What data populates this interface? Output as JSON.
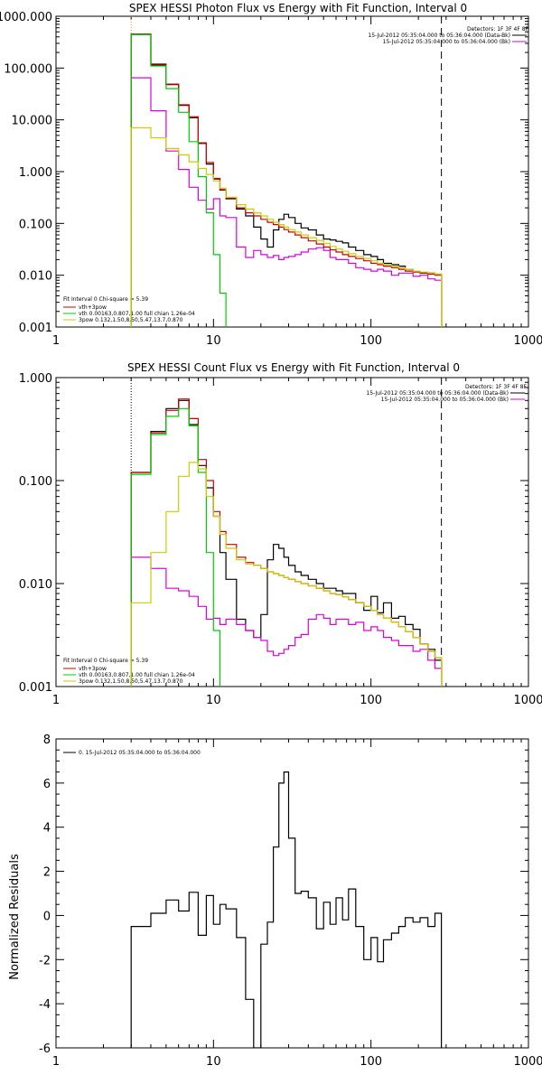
{
  "chart_data": [
    {
      "type": "line",
      "title": "SPEX HESSI Photon Flux vs Energy with Fit Function, Interval 0",
      "xlabel": "",
      "ylabel": "",
      "xscale": "log",
      "yscale": "log",
      "xlim": [
        1,
        1000
      ],
      "ylim": [
        0.001,
        1000
      ],
      "xticks": [
        "1",
        "10",
        "100",
        "1000"
      ],
      "yticks": [
        "0.001",
        "0.010",
        "0.100",
        "1.000",
        "10.000",
        "100.000",
        "1000.000"
      ],
      "vlines": [
        {
          "x": 3,
          "style": "dotted-orange"
        },
        {
          "x": 280,
          "style": "dashed"
        }
      ],
      "legend_topright": [
        "Detectors: 1F 3F 4F 8F",
        "15-Jul-2012 05:35:04.000 to 05:36:04.000 (Data-Bk)",
        "15-Jul-2012 05:35:04.000 to 05:36:04.000 (Bk)"
      ],
      "legend_bottomleft": [
        "Fit Interval 0   Chi-square = 5.39",
        "vth+3pow",
        "vth 0.00163,0.807,1.00  full chian 1.26e-04",
        "3pow 0.132,1.50,8.50,5.47,13.7,0.870"
      ],
      "series": [
        {
          "name": "15-Jul-2012 05:35:04.000 to 05:36:04.000 (Data-Bk)",
          "color": "#000000",
          "edges": [
            3,
            4,
            5,
            6,
            7,
            8,
            9,
            10,
            11,
            12,
            14,
            16,
            18,
            20,
            22,
            24,
            26,
            28,
            30,
            33,
            36,
            40,
            45,
            50,
            55,
            60,
            66,
            72,
            80,
            90,
            100,
            110,
            120,
            135,
            150,
            165,
            185,
            205,
            230,
            255,
            280
          ],
          "values": [
            450,
            115,
            48,
            19,
            11,
            3.5,
            1.4,
            0.72,
            0.44,
            0.3,
            0.19,
            0.14,
            0.085,
            0.05,
            0.035,
            0.075,
            0.12,
            0.15,
            0.13,
            0.1,
            0.082,
            0.075,
            0.06,
            0.05,
            0.048,
            0.045,
            0.042,
            0.035,
            0.03,
            0.025,
            0.023,
            0.02,
            0.017,
            0.016,
            0.015,
            0.013,
            0.012,
            0.011,
            0.011,
            0.0105
          ]
        },
        {
          "name": "15-Jul-2012 05:35:04.000 to 05:36:04.000 (Bk)",
          "color": "#dd00dd",
          "edges": [
            3,
            4,
            5,
            6,
            7,
            8,
            9,
            10,
            11,
            12,
            14,
            16,
            18,
            20,
            22,
            24,
            26,
            28,
            30,
            33,
            36,
            40,
            45,
            50,
            55,
            60,
            66,
            72,
            80,
            90,
            100,
            110,
            120,
            135,
            150,
            165,
            185,
            205,
            230,
            255,
            280
          ],
          "values": [
            65,
            15,
            2.5,
            1.1,
            0.5,
            0.28,
            0.19,
            0.3,
            0.14,
            0.13,
            0.035,
            0.022,
            0.03,
            0.025,
            0.022,
            0.024,
            0.02,
            0.022,
            0.023,
            0.025,
            0.028,
            0.032,
            0.034,
            0.03,
            0.022,
            0.02,
            0.02,
            0.017,
            0.014,
            0.013,
            0.012,
            0.013,
            0.012,
            0.01,
            0.011,
            0.011,
            0.0095,
            0.01,
            0.0085,
            0.008
          ]
        },
        {
          "name": "vth+3pow",
          "color": "#cc0000",
          "edges": [
            3,
            4,
            5,
            6,
            7,
            8,
            9,
            10,
            11,
            12,
            14,
            16,
            18,
            20,
            22,
            24,
            26,
            28,
            30,
            33,
            36,
            40,
            45,
            50,
            55,
            60,
            66,
            72,
            80,
            90,
            100,
            110,
            120,
            135,
            150,
            165,
            185,
            205,
            230,
            255,
            280
          ],
          "values": [
            450,
            120,
            49,
            19.5,
            11.5,
            3.6,
            1.5,
            0.74,
            0.45,
            0.31,
            0.2,
            0.16,
            0.14,
            0.12,
            0.105,
            0.095,
            0.085,
            0.076,
            0.068,
            0.06,
            0.053,
            0.046,
            0.04,
            0.035,
            0.031,
            0.028,
            0.025,
            0.023,
            0.021,
            0.019,
            0.017,
            0.016,
            0.015,
            0.014,
            0.013,
            0.012,
            0.0115,
            0.011,
            0.0105,
            0.01
          ]
        },
        {
          "name": "vth 0.00163,0.807,1.00  full chian 1.26e-04",
          "color": "#00cc00",
          "edges": [
            3,
            4,
            5,
            6,
            7,
            8,
            9,
            10,
            11,
            12,
            13
          ],
          "values": [
            440,
            110,
            40,
            14,
            3.8,
            0.8,
            0.16,
            0.025,
            0.0045,
            0.0004
          ]
        },
        {
          "name": "3pow 0.132,1.50,8.50,5.47,13.7,0.870",
          "color": "#cccc00",
          "edges": [
            3,
            4,
            5,
            6,
            7,
            8,
            9,
            10,
            11,
            12,
            14,
            16,
            18,
            20,
            22,
            24,
            26,
            28,
            30,
            33,
            36,
            40,
            45,
            50,
            55,
            60,
            66,
            72,
            80,
            90,
            100,
            110,
            120,
            135,
            150,
            165,
            185,
            205,
            230,
            255,
            280
          ],
          "values": [
            7,
            4.5,
            2.8,
            2.1,
            1.55,
            1.15,
            0.88,
            0.66,
            0.48,
            0.32,
            0.23,
            0.19,
            0.16,
            0.14,
            0.12,
            0.105,
            0.095,
            0.085,
            0.076,
            0.068,
            0.06,
            0.053,
            0.047,
            0.041,
            0.036,
            0.032,
            0.029,
            0.026,
            0.023,
            0.021,
            0.019,
            0.017,
            0.016,
            0.015,
            0.014,
            0.013,
            0.012,
            0.0115,
            0.011,
            0.0105
          ]
        }
      ]
    },
    {
      "type": "line",
      "title": "SPEX HESSI Count Flux vs Energy with Fit Function, Interval 0",
      "xlabel": "",
      "ylabel": "",
      "xscale": "log",
      "yscale": "log",
      "xlim": [
        1,
        1000
      ],
      "ylim": [
        0.001,
        1
      ],
      "xticks": [
        "1",
        "10",
        "100",
        "1000"
      ],
      "yticks": [
        "0.001",
        "0.010",
        "0.100",
        "1.000"
      ],
      "vlines": [
        {
          "x": 3,
          "style": "dotted"
        },
        {
          "x": 280,
          "style": "dashed"
        }
      ],
      "legend_topright": [
        "Detectors: 1F 3F 4F 8F",
        "15-Jul-2012 05:35:04.000 to 05:36:04.000 (Data-Bk)",
        "15-Jul-2012 05:35:04.000 to 05:36:04.000 (Bk)"
      ],
      "legend_bottomleft": [
        "Fit Interval 0   Chi-square = 5.39",
        "vth+3pow",
        "vth 0.00163,0.807,1.00  full chian 1.26e-04",
        "3pow 0.132,1.50,8.50,5.47,13.7,0.870"
      ],
      "series": [
        {
          "name": "15-Jul-2012 05:35:04.000 to 05:36:04.000 (Data-Bk)",
          "color": "#000000",
          "edges": [
            3,
            4,
            5,
            6,
            7,
            8,
            9,
            10,
            11,
            12,
            14,
            16,
            18,
            20,
            22,
            24,
            26,
            28,
            30,
            33,
            36,
            40,
            45,
            50,
            55,
            60,
            66,
            72,
            80,
            90,
            100,
            110,
            120,
            135,
            150,
            165,
            185,
            205,
            230,
            255,
            280
          ],
          "values": [
            0.12,
            0.3,
            0.5,
            0.6,
            0.35,
            0.14,
            0.085,
            0.045,
            0.02,
            0.011,
            0.0045,
            0.0035,
            0.003,
            0.005,
            0.017,
            0.024,
            0.022,
            0.018,
            0.015,
            0.013,
            0.012,
            0.011,
            0.01,
            0.009,
            0.009,
            0.0085,
            0.008,
            0.008,
            0.0065,
            0.0055,
            0.0075,
            0.0052,
            0.0065,
            0.0046,
            0.0048,
            0.004,
            0.0036,
            0.0026,
            0.0023,
            0.0018
          ]
        },
        {
          "name": "15-Jul-2012 05:35:04.000 to 05:36:04.000 (Bk)",
          "color": "#dd00dd",
          "edges": [
            3,
            4,
            5,
            6,
            7,
            8,
            9,
            10,
            11,
            12,
            14,
            16,
            18,
            20,
            22,
            24,
            26,
            28,
            30,
            33,
            36,
            40,
            45,
            50,
            55,
            60,
            66,
            72,
            80,
            90,
            100,
            110,
            120,
            135,
            150,
            165,
            185,
            205,
            230,
            255,
            280
          ],
          "values": [
            0.018,
            0.014,
            0.009,
            0.0085,
            0.0075,
            0.006,
            0.0045,
            0.0046,
            0.004,
            0.0045,
            0.004,
            0.0035,
            0.003,
            0.0028,
            0.0022,
            0.002,
            0.0021,
            0.0023,
            0.0025,
            0.003,
            0.0032,
            0.0045,
            0.005,
            0.0046,
            0.004,
            0.0045,
            0.0045,
            0.004,
            0.0042,
            0.0035,
            0.0038,
            0.0035,
            0.003,
            0.0028,
            0.0025,
            0.0025,
            0.0022,
            0.0023,
            0.0018,
            0.0015
          ]
        },
        {
          "name": "vth+3pow",
          "color": "#cc0000",
          "edges": [
            3,
            4,
            5,
            6,
            7,
            8,
            9,
            10,
            11,
            12,
            14,
            16,
            18,
            20,
            22,
            24,
            26,
            28,
            30,
            33,
            36,
            40,
            45,
            50,
            55,
            60,
            66,
            72,
            80,
            90,
            100,
            110,
            120,
            135,
            150,
            165,
            185,
            205,
            230,
            255,
            280
          ],
          "values": [
            0.12,
            0.29,
            0.48,
            0.62,
            0.4,
            0.16,
            0.1,
            0.05,
            0.032,
            0.024,
            0.018,
            0.016,
            0.015,
            0.014,
            0.013,
            0.0125,
            0.012,
            0.0115,
            0.011,
            0.0105,
            0.01,
            0.0095,
            0.009,
            0.0085,
            0.008,
            0.0078,
            0.0074,
            0.007,
            0.0065,
            0.006,
            0.0055,
            0.005,
            0.0046,
            0.0042,
            0.0038,
            0.0034,
            0.003,
            0.0026,
            0.0022,
            0.0019
          ]
        },
        {
          "name": "vth 0.00163,0.807,1.00  full chian 1.26e-04",
          "color": "#00cc00",
          "edges": [
            3,
            4,
            5,
            6,
            7,
            8,
            9,
            10,
            11,
            12,
            13
          ],
          "values": [
            0.115,
            0.28,
            0.42,
            0.5,
            0.34,
            0.12,
            0.02,
            0.0035,
            0.0009,
            0.0004
          ]
        },
        {
          "name": "3pow 0.132,1.50,8.50,5.47,13.7,0.870",
          "color": "#cccc00",
          "edges": [
            3,
            4,
            5,
            6,
            7,
            8,
            9,
            10,
            11,
            12,
            14,
            16,
            18,
            20,
            22,
            24,
            26,
            28,
            30,
            33,
            36,
            40,
            45,
            50,
            55,
            60,
            66,
            72,
            80,
            90,
            100,
            110,
            120,
            135,
            150,
            165,
            185,
            205,
            230,
            255,
            280
          ],
          "values": [
            0.0065,
            0.02,
            0.05,
            0.11,
            0.15,
            0.13,
            0.07,
            0.045,
            0.03,
            0.022,
            0.017,
            0.0155,
            0.015,
            0.014,
            0.013,
            0.0125,
            0.012,
            0.0115,
            0.011,
            0.0105,
            0.01,
            0.0095,
            0.009,
            0.0085,
            0.008,
            0.0078,
            0.0074,
            0.007,
            0.0065,
            0.006,
            0.0055,
            0.005,
            0.0046,
            0.0042,
            0.0038,
            0.0034,
            0.003,
            0.0026,
            0.0022,
            0.0019
          ]
        }
      ]
    },
    {
      "type": "line",
      "title": "",
      "xlabel": "",
      "ylabel": "Normalized Residuals",
      "xscale": "log",
      "yscale": "linear",
      "xlim": [
        1,
        1000
      ],
      "ylim": [
        -6,
        8
      ],
      "xticks": [
        "1",
        "10",
        "100",
        "1000"
      ],
      "yticks": [
        "-6",
        "-4",
        "-2",
        "0",
        "2",
        "4",
        "6",
        "8"
      ],
      "legend_topleft": [
        "0. 15-Jul-2012 05:35:04.000 to 05:36:04.000"
      ],
      "series": [
        {
          "name": "0. 15-Jul-2012 05:35:04.000 to 05:36:04.000",
          "color": "#000000",
          "edges": [
            3,
            4,
            5,
            6,
            7,
            8,
            9,
            10,
            11,
            12,
            14,
            16,
            18,
            20,
            22,
            24,
            26,
            28,
            30,
            33,
            36,
            40,
            45,
            50,
            55,
            60,
            66,
            72,
            80,
            90,
            100,
            110,
            120,
            135,
            150,
            165,
            185,
            205,
            230,
            255,
            280
          ],
          "values": [
            -0.5,
            0.1,
            0.7,
            0.2,
            1.05,
            -0.9,
            0.9,
            -0.4,
            0.5,
            0.3,
            -1.0,
            -3.8,
            -6.0,
            -1.3,
            -0.3,
            3.1,
            6.0,
            6.5,
            3.5,
            1.0,
            1.1,
            0.8,
            -0.6,
            0.6,
            -0.4,
            0.8,
            -0.2,
            1.2,
            -0.5,
            -2.0,
            -1.0,
            -2.1,
            -1.1,
            -0.8,
            -0.5,
            -0.1,
            -0.3,
            -0.1,
            -0.5,
            0.1
          ]
        }
      ]
    }
  ]
}
